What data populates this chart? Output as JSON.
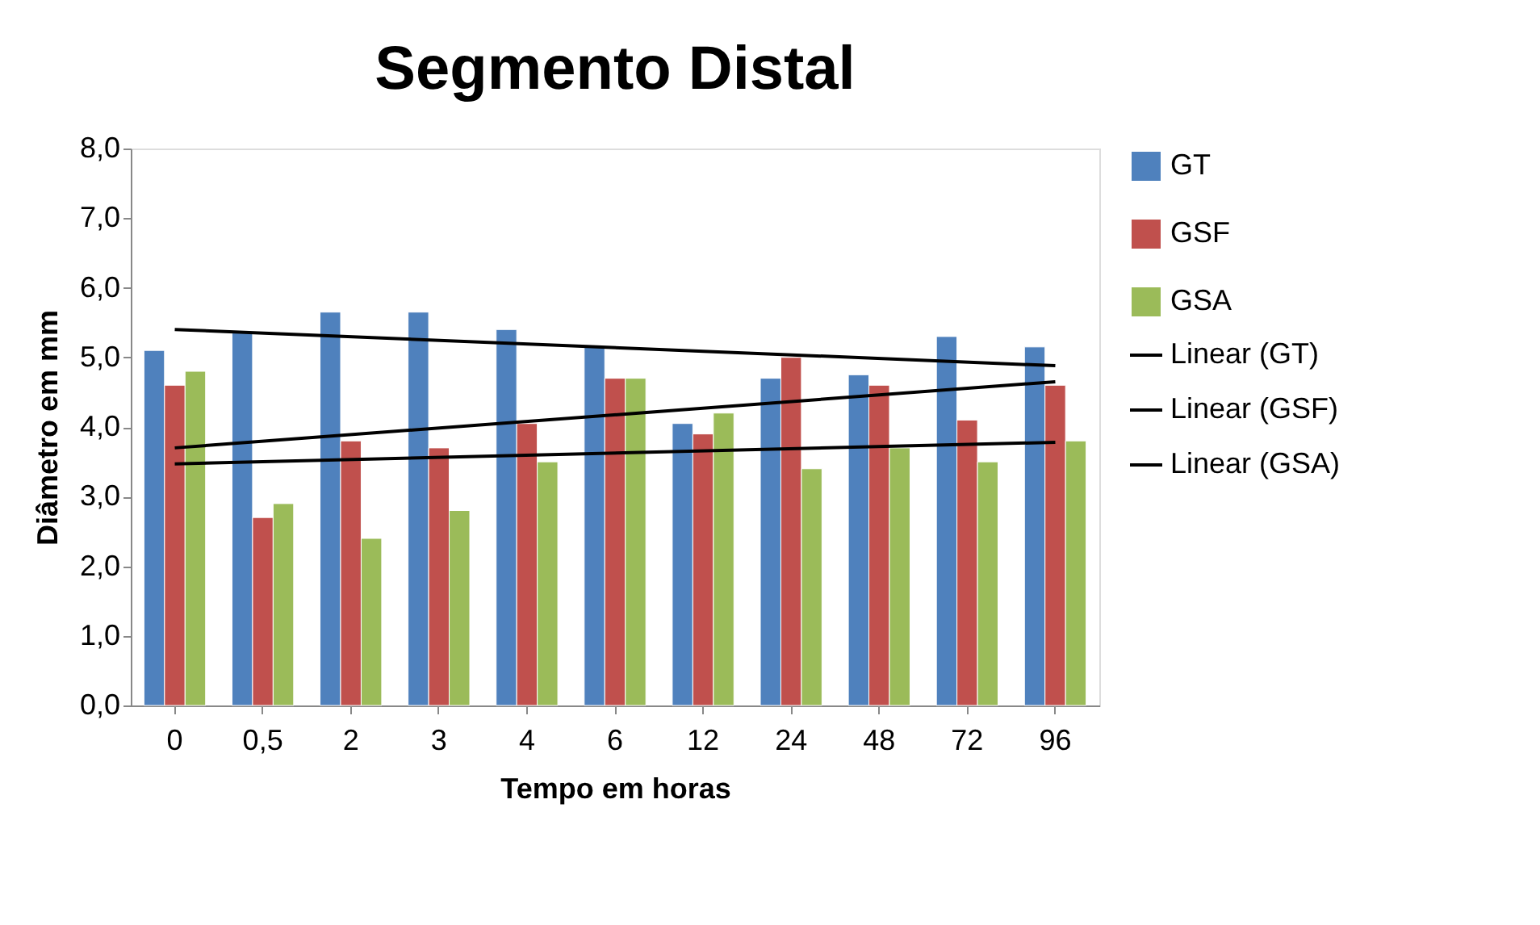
{
  "chart_data": {
    "type": "bar",
    "title": "Segmento Distal",
    "xlabel": "Tempo em horas",
    "ylabel": "Diâmetro em mm",
    "categories": [
      "0",
      "0,5",
      "2",
      "3",
      "4",
      "6",
      "12",
      "24",
      "48",
      "72",
      "96"
    ],
    "series": [
      {
        "name": "GT",
        "color": "#4f81bd",
        "values": [
          5.1,
          5.35,
          5.65,
          5.65,
          5.4,
          5.15,
          4.05,
          4.7,
          4.75,
          5.3,
          5.15
        ]
      },
      {
        "name": "GSF",
        "color": "#c0504d",
        "values": [
          4.6,
          2.7,
          3.8,
          3.7,
          4.05,
          4.7,
          3.9,
          5.0,
          4.6,
          4.1,
          4.6
        ]
      },
      {
        "name": "GSA",
        "color": "#9bbb59",
        "values": [
          4.8,
          2.9,
          2.4,
          2.8,
          3.5,
          4.7,
          4.2,
          3.4,
          3.7,
          3.5,
          3.8
        ]
      },
      {
        "name": "Linear (GT)",
        "type": "line",
        "color": "#000000",
        "x": [
          "0",
          "96"
        ],
        "values": [
          5.4,
          4.88
        ]
      },
      {
        "name": "Linear (GSF)",
        "type": "line",
        "color": "#000000",
        "x": [
          "0",
          "96"
        ],
        "values": [
          3.7,
          4.65
        ]
      },
      {
        "name": "Linear (GSA)",
        "type": "line",
        "color": "#000000",
        "x": [
          "0",
          "96"
        ],
        "values": [
          3.47,
          3.78
        ]
      }
    ],
    "ylim": [
      0,
      8
    ],
    "yticks": [
      {
        "value": 0,
        "label": "0,0"
      },
      {
        "value": 1,
        "label": "1,0"
      },
      {
        "value": 2,
        "label": "2,0"
      },
      {
        "value": 3,
        "label": "3,0"
      },
      {
        "value": 4,
        "label": "4,0"
      },
      {
        "value": 5,
        "label": "5,0"
      },
      {
        "value": 6,
        "label": "6,0"
      },
      {
        "value": 7,
        "label": "7,0"
      },
      {
        "value": 8,
        "label": "8,0"
      }
    ],
    "grid": false,
    "legend": "right"
  }
}
